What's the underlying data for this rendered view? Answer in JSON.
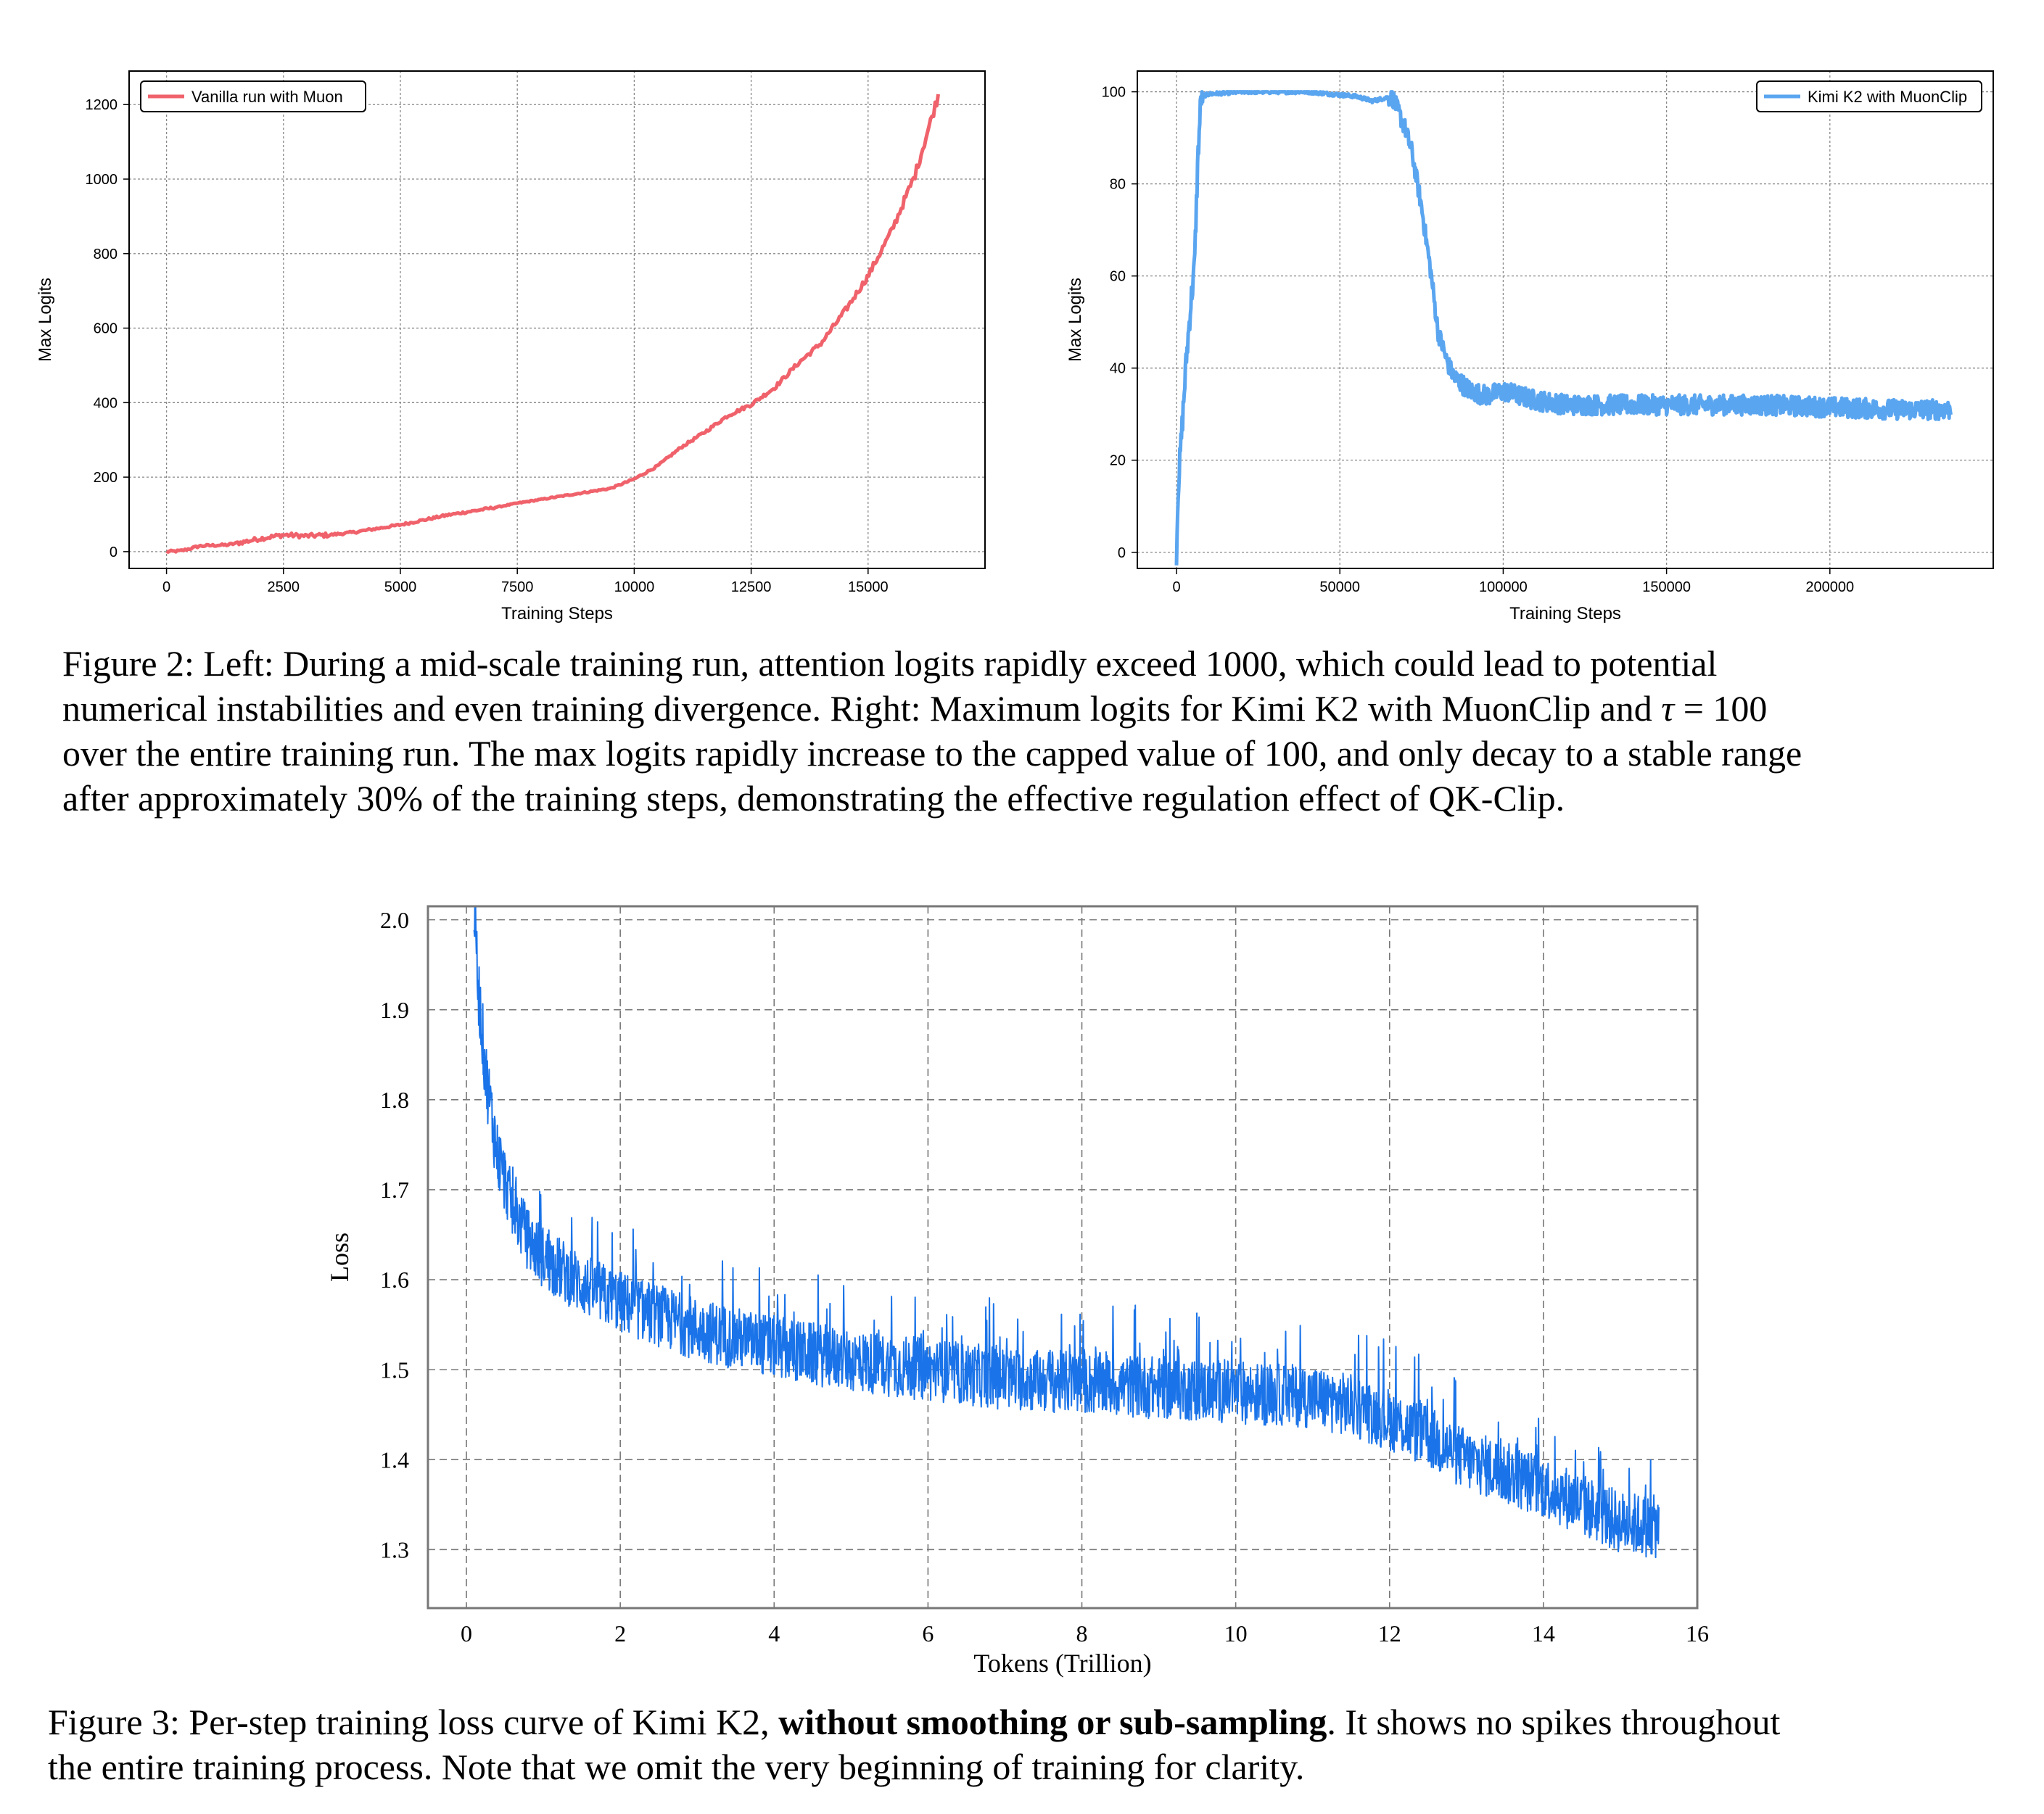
{
  "chart_data": [
    {
      "id": "fig2-left",
      "type": "line",
      "xlabel": "Training Steps",
      "ylabel": "Max Logits",
      "xlim": [
        -800,
        17500
      ],
      "ylim": [
        -45,
        1290
      ],
      "xticks": [
        0,
        2500,
        5000,
        7500,
        10000,
        12500,
        15000
      ],
      "yticks": [
        0,
        200,
        400,
        600,
        800,
        1000,
        1200
      ],
      "grid": true,
      "legend_position": "upper left",
      "color": "#F0626B",
      "series": [
        {
          "name": "Vanilla run with Muon",
          "x": [
            0,
            300,
            500,
            700,
            1000,
            1300,
            1600,
            2000,
            2500,
            3000,
            3500,
            4000,
            4500,
            5000,
            5500,
            6000,
            6500,
            7000,
            7500,
            8000,
            8500,
            9000,
            9500,
            10000,
            10500,
            11000,
            11500,
            12000,
            12500,
            13000,
            13500,
            14000,
            14500,
            15000,
            15500,
            16000,
            16500
          ],
          "y": [
            0,
            2,
            8,
            15,
            17,
            18,
            25,
            35,
            45,
            42,
            45,
            52,
            62,
            72,
            85,
            98,
            108,
            118,
            130,
            140,
            150,
            160,
            170,
            195,
            230,
            280,
            320,
            365,
            395,
            440,
            505,
            560,
            645,
            740,
            860,
            1010,
            1225
          ]
        }
      ]
    },
    {
      "id": "fig2-right",
      "type": "line",
      "xlabel": "Training Steps",
      "ylabel": "Max Logits",
      "xlim": [
        -12000,
        250000
      ],
      "ylim": [
        -3.5,
        104.5
      ],
      "xticks": [
        0,
        50000,
        100000,
        150000,
        200000
      ],
      "yticks": [
        0,
        20,
        40,
        60,
        80,
        100
      ],
      "grid": true,
      "legend_position": "upper right",
      "color": "#5AA5F0",
      "series": [
        {
          "name": "Kimi K2 with MuonClip",
          "x": [
            0,
            500,
            1500,
            3000,
            4500,
            5500,
            6500,
            7500,
            10000,
            20000,
            40000,
            55000,
            60000,
            66000,
            70000,
            72000,
            75000,
            78000,
            80000,
            83000,
            85000,
            90000,
            95000,
            100000,
            110000,
            120000,
            140000,
            160000,
            180000,
            200000,
            220000,
            237000
          ],
          "y": [
            0,
            14,
            25,
            42,
            55,
            62,
            85,
            99,
            99.5,
            100,
            100,
            99,
            98,
            99,
            92,
            87,
            75,
            60,
            48,
            41,
            38,
            35,
            34,
            35,
            33,
            32,
            32,
            32,
            32,
            31.5,
            31,
            31
          ]
        }
      ]
    },
    {
      "id": "fig3",
      "type": "line",
      "xlabel": "Tokens (Trillion)",
      "ylabel": "Loss",
      "xlim": [
        -0.5,
        16
      ],
      "ylim": [
        1.235,
        2.015
      ],
      "xticks": [
        0,
        2,
        4,
        6,
        8,
        10,
        12,
        14,
        16
      ],
      "yticks": [
        1.3,
        1.4,
        1.5,
        1.6,
        1.7,
        1.8,
        1.9,
        2.0
      ],
      "grid": true,
      "color": "#1A73E8",
      "series": [
        {
          "name": "",
          "x": [
            0.1,
            0.15,
            0.25,
            0.4,
            0.6,
            0.8,
            1.0,
            1.5,
            2.0,
            3.0,
            4.0,
            5.0,
            6.0,
            7.0,
            8.0,
            9.0,
            10.0,
            11.0,
            11.5,
            12.0,
            12.5,
            13.0,
            13.5,
            14.0,
            14.5,
            15.0,
            15.5
          ],
          "y": [
            2.02,
            1.93,
            1.83,
            1.74,
            1.68,
            1.645,
            1.625,
            1.595,
            1.575,
            1.545,
            1.525,
            1.51,
            1.5,
            1.49,
            1.485,
            1.48,
            1.475,
            1.47,
            1.46,
            1.445,
            1.425,
            1.4,
            1.385,
            1.37,
            1.35,
            1.33,
            1.325
          ]
        }
      ]
    }
  ],
  "captions": {
    "fig2": [
      "Figure 2: Left: During a mid-scale training run, attention logits rapidly exceed 1000, which could lead to potential",
      "numerical instabilities and even training divergence. Right: Maximum logits for Kimi K2 with MuonClip and ",
      "τ",
      " = 100",
      "over the entire training run. The max logits rapidly increase to the capped value of 100, and only decay to a stable range",
      "after approximately 30% of the training steps, demonstrating the effective regulation effect of QK-Clip."
    ],
    "fig3": [
      "Figure 3: Per-step training loss curve of Kimi K2, ",
      "without smoothing or sub-sampling",
      ". It shows no spikes throughout",
      "the entire training process. Note that we omit the very beginning of training for clarity."
    ]
  }
}
